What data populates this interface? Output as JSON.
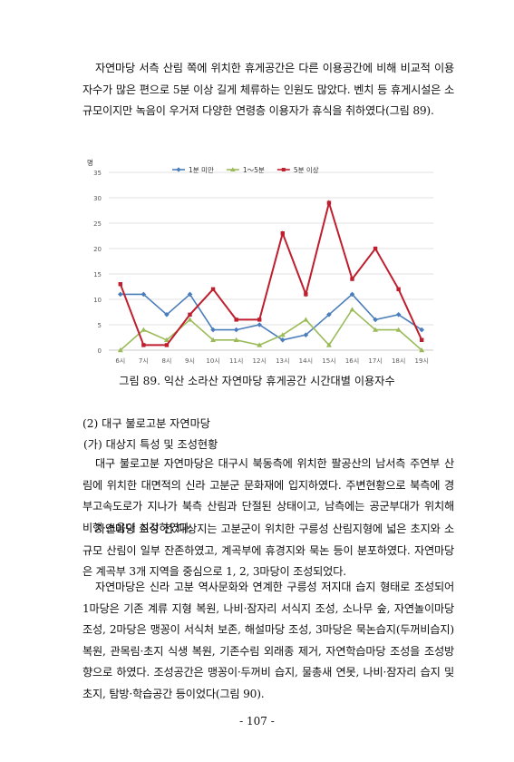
{
  "paragraphs": {
    "intro": "자연마당 서측 산림 쪽에 위치한 휴게공간은 다른 이용공간에 비해 비교적 이용자수가 많은 편으로 5분 이상 길게 체류하는 인원도 많았다. 벤치 등 휴게시설은 소규모이지만 녹음이 우거져 다양한 연령층 이용자가 휴식을 취하였다(그림 89).",
    "p1": "대구 불로고분 자연마당은 대구시 북동측에 위치한 팔공산의 남서측 주연부 산림에 위치한 대면적의 신라 고분군 문화재에 입지하였다. 주변현황으로 북측에 경부고속도로가 지나가 북측 산림과 단절된 상태이고, 남측에는 공군부대가 위치해 비행 소음이 심각하였다.",
    "p2": "자연마당 조성 전 대상지는 고분군이 위치한 구릉성 산림지형에 넓은 초지와 소규모 산림이 일부 잔존하였고, 계곡부에 휴경지와 묵논 등이 분포하였다. 자연마당은 계곡부 3개 지역을 중심으로 1, 2, 3마당이 조성되었다.",
    "p3": "자연마당은 신라 고분 역사문화와 연계한 구릉성 저지대 습지 형태로 조성되어 1마당은 기존 계류 지형 복원, 나비·잠자리 서식지 조성, 소나무 숲, 자연놀이마당 조성, 2마당은 맹꽁이 서식처 보존, 해설마당 조성, 3마당은 묵논습지(두꺼비습지) 복원, 관목림·초지 식생 복원, 기존수림 외래종 제거, 자연학습마당 조성을 조성방향으로 하였다. 조성공간은 맹꽁이·두꺼비 습지, 물총새 연못, 나비·잠자리 습지 및 초지, 탐방·학습공간 등이었다(그림 90)."
  },
  "figure": {
    "caption": "그림 89. 익산 소라산 자연마당 휴게공간 시간대별 이용자수"
  },
  "headings": {
    "section": "(2) 대구 불로고분 자연마당",
    "subsection": "(가) 대상지 특성 및 조성현황"
  },
  "page_number": "- 107 -",
  "chart_data": {
    "type": "line",
    "ylabel": "명",
    "ylim": [
      0,
      35
    ],
    "yticks": [
      0,
      5,
      10,
      15,
      20,
      25,
      30,
      35
    ],
    "categories": [
      "6시",
      "7시",
      "8시",
      "9시",
      "10시",
      "11시",
      "12시",
      "13시",
      "14시",
      "15시",
      "16시",
      "17시",
      "18시",
      "19시"
    ],
    "grid": true,
    "legend_position": "top",
    "series": [
      {
        "name": "1분 미만",
        "color": "#4a7ebb",
        "marker": "diamond",
        "values": [
          11,
          11,
          7,
          11,
          4,
          4,
          5,
          2,
          3,
          7,
          11,
          6,
          7,
          4
        ]
      },
      {
        "name": "1～5분",
        "color": "#9bbb59",
        "marker": "triangle",
        "values": [
          0,
          4,
          2,
          6,
          2,
          2,
          1,
          3,
          6,
          1,
          8,
          4,
          4,
          0
        ]
      },
      {
        "name": "5분 이상",
        "color": "#be1e2d",
        "marker": "square",
        "values": [
          13,
          1,
          1,
          7,
          12,
          6,
          6,
          23,
          11,
          29,
          14,
          20,
          12,
          2
        ]
      }
    ]
  }
}
